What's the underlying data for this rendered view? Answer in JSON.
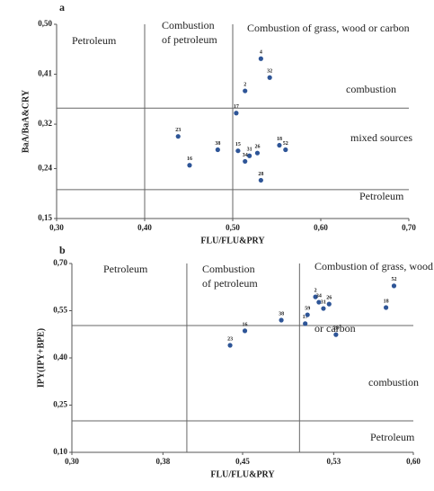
{
  "chart_data": [
    {
      "type": "scatter",
      "panel": "a",
      "x_label": "FLU/FLU&PRY",
      "y_label": "BaA/BaA&CRY",
      "color": "#2e5597",
      "xlim": [
        0.3,
        0.7
      ],
      "ylim": [
        0.15,
        0.5
      ],
      "xticks": [
        {
          "value": 0.3,
          "label": "0,30"
        },
        {
          "value": 0.4,
          "label": "0,40"
        },
        {
          "value": 0.5,
          "label": "0,50"
        },
        {
          "value": 0.6,
          "label": "0,60"
        },
        {
          "value": 0.7,
          "label": "0,70"
        }
      ],
      "yticks": [
        {
          "value": 0.15,
          "label": "0,15"
        },
        {
          "value": 0.24,
          "label": "0,24"
        },
        {
          "value": 0.32,
          "label": "0,32"
        },
        {
          "value": 0.41,
          "label": "0,41"
        },
        {
          "value": 0.5,
          "label": "0,50"
        }
      ],
      "vlines": [
        0.4,
        0.5
      ],
      "hlines": [
        0.349,
        0.202
      ],
      "labels": [
        "4",
        "32",
        "2",
        "17",
        "23",
        "38",
        "16",
        "15",
        "31",
        "26",
        "34",
        "28",
        "18",
        "52"
      ],
      "x": [
        0.532,
        0.542,
        0.514,
        0.504,
        0.438,
        0.483,
        0.451,
        0.506,
        0.519,
        0.528,
        0.514,
        0.532,
        0.553,
        0.56
      ],
      "y": [
        0.438,
        0.404,
        0.38,
        0.34,
        0.298,
        0.274,
        0.246,
        0.272,
        0.263,
        0.268,
        0.253,
        0.219,
        0.282,
        0.274
      ],
      "annotations": [
        "Petroleum",
        "Combustion",
        "of petroleum",
        "Combustion of grass, wood or carbon",
        "combustion",
        "mixed sources",
        "Petroleum"
      ]
    },
    {
      "type": "scatter",
      "panel": "b",
      "x_label": "FLU/FLU&PRY",
      "y_label": "IPY(IPY+BPE)",
      "color": "#2e5597",
      "xlim": [
        0.3,
        0.6
      ],
      "ylim": [
        0.1,
        0.7
      ],
      "xticks": [
        {
          "value": 0.3,
          "label": "0,30"
        },
        {
          "value": 0.38,
          "label": "0,38"
        },
        {
          "value": 0.45,
          "label": "0,45"
        },
        {
          "value": 0.53,
          "label": "0,53"
        },
        {
          "value": 0.6,
          "label": "0,60"
        }
      ],
      "yticks": [
        {
          "value": 0.1,
          "label": "0,10"
        },
        {
          "value": 0.25,
          "label": "0,25"
        },
        {
          "value": 0.4,
          "label": "0,40"
        },
        {
          "value": 0.55,
          "label": "0,55"
        },
        {
          "value": 0.7,
          "label": "0,70"
        }
      ],
      "vlines": [
        0.401,
        0.5
      ],
      "hlines": [
        0.503,
        0.2
      ],
      "labels": [
        "23",
        "16",
        "38",
        "17",
        "59",
        "2",
        "34",
        "26",
        "31",
        "28",
        "18",
        "52"
      ],
      "x": [
        0.439,
        0.452,
        0.484,
        0.505,
        0.507,
        0.514,
        0.517,
        0.526,
        0.521,
        0.532,
        0.576,
        0.583
      ],
      "y": [
        0.44,
        0.486,
        0.52,
        0.509,
        0.537,
        0.594,
        0.577,
        0.571,
        0.557,
        0.474,
        0.56,
        0.629
      ],
      "annotations": [
        "Petroleum",
        "Combustion",
        "of petroleum",
        "Combustion of grass, wood",
        "or carbon",
        "combustion",
        "Petroleum"
      ]
    }
  ]
}
